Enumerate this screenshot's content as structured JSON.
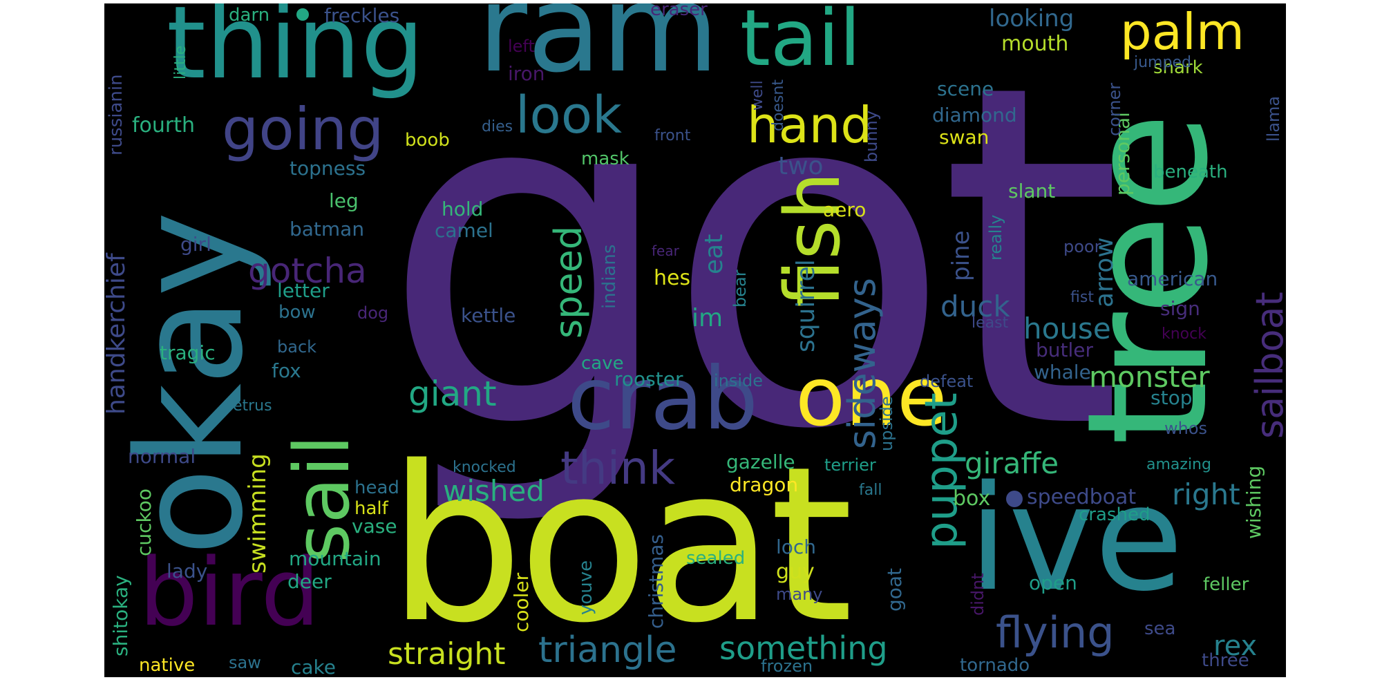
{
  "words": [
    {
      "id": "got",
      "text": "got",
      "color": "#482878"
    },
    {
      "id": "boat",
      "text": "boat",
      "color": "#c8e020"
    },
    {
      "id": "tree",
      "text": "tree",
      "color": "#35b779"
    },
    {
      "id": "okay",
      "text": "okay",
      "color": "#2a788e"
    },
    {
      "id": "ram",
      "text": "ram",
      "color": "#2a788e"
    },
    {
      "id": "thing",
      "text": "thing",
      "color": "#21918c"
    },
    {
      "id": "ive",
      "text": "ive",
      "color": "#26828e"
    },
    {
      "id": "crab",
      "text": "crab",
      "color": "#3e4a89"
    },
    {
      "id": "bird",
      "text": "bird",
      "color": "#440154"
    },
    {
      "id": "sail",
      "text": "sail",
      "color": "#5ec962"
    },
    {
      "id": "one",
      "text": "one",
      "color": "#fde725"
    },
    {
      "id": "fish",
      "text": "fish",
      "color": "#b5de2b"
    },
    {
      "id": "tail",
      "text": "tail",
      "color": "#22a884"
    },
    {
      "id": "palm",
      "text": "palm",
      "color": "#fde725"
    },
    {
      "id": "going",
      "text": "going",
      "color": "#414487"
    },
    {
      "id": "look",
      "text": "look",
      "color": "#2a788e"
    },
    {
      "id": "hand",
      "text": "hand",
      "color": "#dde318"
    },
    {
      "id": "think",
      "text": "think",
      "color": "#443a83"
    },
    {
      "id": "puppet",
      "text": "puppet",
      "color": "#1f9e89"
    },
    {
      "id": "flying",
      "text": "flying",
      "color": "#3b528b"
    },
    {
      "id": "sailboat",
      "text": "sailboat",
      "color": "#472d7b"
    },
    {
      "id": "triangle",
      "text": "triangle",
      "color": "#2c728e"
    },
    {
      "id": "sideways",
      "text": "sideways",
      "color": "#33638d"
    },
    {
      "id": "speed",
      "text": "speed",
      "color": "#35b779"
    },
    {
      "id": "something",
      "text": "something",
      "color": "#1f9e89"
    },
    {
      "id": "giant",
      "text": "giant",
      "color": "#22a884"
    },
    {
      "id": "gotcha",
      "text": "gotcha",
      "color": "#482677"
    },
    {
      "id": "monster",
      "text": "monster",
      "color": "#5ec962"
    },
    {
      "id": "giraffe",
      "text": "giraffe",
      "color": "#35b779"
    },
    {
      "id": "rex",
      "text": "rex",
      "color": "#26828e"
    },
    {
      "id": "right",
      "text": "right",
      "color": "#2a788e"
    },
    {
      "id": "straight",
      "text": "straight",
      "color": "#c8e020"
    },
    {
      "id": "wished",
      "text": "wished",
      "color": "#29af7f"
    },
    {
      "id": "house",
      "text": "house",
      "color": "#2a788e"
    },
    {
      "id": "duck",
      "text": "duck",
      "color": "#33638d"
    },
    {
      "id": "handkerchief",
      "text": "handkerchief",
      "color": "#3e4a89"
    },
    {
      "id": "squirrel",
      "text": "squirrel",
      "color": "#2c728e"
    },
    {
      "id": "arrow",
      "text": "arrow",
      "color": "#2c728e"
    },
    {
      "id": "swimming",
      "text": "swimming",
      "color": "#c8e020"
    },
    {
      "id": "two",
      "text": "two",
      "color": "#3b528b"
    },
    {
      "id": "pine",
      "text": "pine",
      "color": "#3b528b"
    },
    {
      "id": "eat",
      "text": "eat",
      "color": "#26828e"
    },
    {
      "id": "im",
      "text": "im",
      "color": "#22a884"
    },
    {
      "id": "hes",
      "text": "hes",
      "color": "#dde318"
    },
    {
      "id": "looking",
      "text": "looking",
      "color": "#31688e"
    },
    {
      "id": "mouth",
      "text": "mouth",
      "color": "#b5de2b"
    },
    {
      "id": "shark",
      "text": "shark",
      "color": "#a0da39"
    },
    {
      "id": "scene",
      "text": "scene",
      "color": "#2c728e"
    },
    {
      "id": "diamond",
      "text": "diamond",
      "color": "#31688e"
    },
    {
      "id": "swan",
      "text": "swan",
      "color": "#dde318"
    },
    {
      "id": "fourth",
      "text": "fourth",
      "color": "#2ab07f"
    },
    {
      "id": "boob",
      "text": "boob",
      "color": "#d0e11c"
    },
    {
      "id": "dies",
      "text": "dies",
      "color": "#355f8d"
    },
    {
      "id": "front",
      "text": "front",
      "color": "#3b528b"
    },
    {
      "id": "mask",
      "text": "mask",
      "color": "#52c569"
    },
    {
      "id": "topness",
      "text": "topness",
      "color": "#2c728e"
    },
    {
      "id": "leg",
      "text": "leg",
      "color": "#4ac16d"
    },
    {
      "id": "batman",
      "text": "batman",
      "color": "#31688e"
    },
    {
      "id": "hold",
      "text": "hold",
      "color": "#35b779"
    },
    {
      "id": "camel",
      "text": "camel",
      "color": "#2c728e"
    },
    {
      "id": "aero",
      "text": "aero",
      "color": "#d8e219"
    },
    {
      "id": "slant",
      "text": "slant",
      "color": "#5ec962"
    },
    {
      "id": "beneath",
      "text": "beneath",
      "color": "#2ab07f"
    },
    {
      "id": "personal",
      "text": "personal",
      "color": "#5ec962"
    },
    {
      "id": "llama",
      "text": "llama",
      "color": "#3b528b"
    },
    {
      "id": "american",
      "text": "american",
      "color": "#38598c"
    },
    {
      "id": "sign",
      "text": "sign",
      "color": "#472d7b"
    },
    {
      "id": "butler",
      "text": "butler",
      "color": "#472d7b"
    },
    {
      "id": "knock",
      "text": "knock",
      "color": "#440154"
    },
    {
      "id": "whale",
      "text": "whale",
      "color": "#33638d"
    },
    {
      "id": "stop",
      "text": "stop",
      "color": "#26828e"
    },
    {
      "id": "whos",
      "text": "whos",
      "color": "#3b528b"
    },
    {
      "id": "amazing",
      "text": "amazing",
      "color": "#21918c"
    },
    {
      "id": "wishing",
      "text": "wishing",
      "color": "#5ec962"
    },
    {
      "id": "speedboat",
      "text": "speedboat",
      "color": "#3e4a89"
    },
    {
      "id": "box",
      "text": "box",
      "color": "#5ec962"
    },
    {
      "id": "crashed",
      "text": "crashed",
      "color": "#1f9e89"
    },
    {
      "id": "feller",
      "text": "feller",
      "color": "#5ec962"
    },
    {
      "id": "sea",
      "text": "sea",
      "color": "#3e4a89"
    },
    {
      "id": "three",
      "text": "three",
      "color": "#3e4a89"
    },
    {
      "id": "tornado",
      "text": "tornado",
      "color": "#31688e"
    },
    {
      "id": "open",
      "text": "open",
      "color": "#1f9e89"
    },
    {
      "id": "didnt",
      "text": "didnt",
      "color": "#481769"
    },
    {
      "id": "goat",
      "text": "goat",
      "color": "#31688e"
    },
    {
      "id": "guy",
      "text": "guy",
      "color": "#d0e11c"
    },
    {
      "id": "loch",
      "text": "loch",
      "color": "#31688e"
    },
    {
      "id": "many",
      "text": "many",
      "color": "#3e4a89"
    },
    {
      "id": "frozen",
      "text": "frozen",
      "color": "#2c728e"
    },
    {
      "id": "sealed",
      "text": "sealed",
      "color": "#2ab07f"
    },
    {
      "id": "youve",
      "text": "youve",
      "color": "#26828e"
    },
    {
      "id": "christmas",
      "text": "christmas",
      "color": "#355f8d"
    },
    {
      "id": "cooler",
      "text": "cooler",
      "color": "#d8e219"
    },
    {
      "id": "dragon",
      "text": "dragon",
      "color": "#fde725"
    },
    {
      "id": "gazelle",
      "text": "gazelle",
      "color": "#35b779"
    },
    {
      "id": "terrier",
      "text": "terrier",
      "color": "#1f9e89"
    },
    {
      "id": "fall",
      "text": "fall",
      "color": "#2a788e"
    },
    {
      "id": "knocked",
      "text": "knocked",
      "color": "#2c728e"
    },
    {
      "id": "upside",
      "text": "upside",
      "color": "#2c728e"
    },
    {
      "id": "defeat",
      "text": "defeat",
      "color": "#3b528b"
    },
    {
      "id": "inside",
      "text": "inside",
      "color": "#2c728e"
    },
    {
      "id": "rooster",
      "text": "rooster",
      "color": "#21918c"
    },
    {
      "id": "cave",
      "text": "cave",
      "color": "#22a884"
    },
    {
      "id": "kettle",
      "text": "kettle",
      "color": "#3b528b"
    },
    {
      "id": "indians",
      "text": "indians",
      "color": "#2c728e"
    },
    {
      "id": "bear",
      "text": "bear",
      "color": "#26828e"
    },
    {
      "id": "fear",
      "text": "fear",
      "color": "#482677"
    },
    {
      "id": "really",
      "text": "really",
      "color": "#26828e"
    },
    {
      "id": "poor",
      "text": "poor",
      "color": "#3e4a89"
    },
    {
      "id": "fist",
      "text": "fist",
      "color": "#3b528b"
    },
    {
      "id": "least",
      "text": "least",
      "color": "#3e4a89"
    },
    {
      "id": "letter",
      "text": "letter",
      "color": "#1f9e89"
    },
    {
      "id": "bow",
      "text": "bow",
      "color": "#2c728e"
    },
    {
      "id": "dog",
      "text": "dog",
      "color": "#482677"
    },
    {
      "id": "back",
      "text": "back",
      "color": "#31688e"
    },
    {
      "id": "fox",
      "text": "fox",
      "color": "#2a788e"
    },
    {
      "id": "tragic",
      "text": "tragic",
      "color": "#2ab07f"
    },
    {
      "id": "petrus",
      "text": "petrus",
      "color": "#2a788e"
    },
    {
      "id": "normal",
      "text": "normal",
      "color": "#3e4a89"
    },
    {
      "id": "cuckoo",
      "text": "cuckoo",
      "color": "#5ec962"
    },
    {
      "id": "head",
      "text": "head",
      "color": "#2c728e"
    },
    {
      "id": "half",
      "text": "half",
      "color": "#d8e219"
    },
    {
      "id": "vase",
      "text": "vase",
      "color": "#2ab07f"
    },
    {
      "id": "lady",
      "text": "lady",
      "color": "#3b528b"
    },
    {
      "id": "mountain",
      "text": "mountain",
      "color": "#22a884"
    },
    {
      "id": "deer",
      "text": "deer",
      "color": "#22a884"
    },
    {
      "id": "shitokay",
      "text": "shitokay",
      "color": "#2ab07f"
    },
    {
      "id": "native",
      "text": "native",
      "color": "#fde725"
    },
    {
      "id": "saw",
      "text": "saw",
      "color": "#2c728e"
    },
    {
      "id": "cake",
      "text": "cake",
      "color": "#26828e"
    },
    {
      "id": "girl",
      "text": "girl",
      "color": "#3e4a89"
    },
    {
      "id": "russianin",
      "text": "russianin",
      "color": "#3e4a89"
    },
    {
      "id": "little",
      "text": "little",
      "color": "#2ab07f"
    },
    {
      "id": "darn",
      "text": "darn",
      "color": "#2ab07f"
    },
    {
      "id": "freckles",
      "text": "freckles",
      "color": "#3b528b"
    },
    {
      "id": "eraser",
      "text": "eraser",
      "color": "#482677"
    },
    {
      "id": "left",
      "text": "left",
      "color": "#440154"
    },
    {
      "id": "iron",
      "text": "iron",
      "color": "#481769"
    },
    {
      "id": "well",
      "text": "well",
      "color": "#3e4a89"
    },
    {
      "id": "doesnt",
      "text": "doesnt",
      "color": "#38598c"
    },
    {
      "id": "bunny",
      "text": "bunny",
      "color": "#3e4a89"
    },
    {
      "id": "corner",
      "text": "corner",
      "color": "#3b528b"
    },
    {
      "id": "jumped",
      "text": "jumped",
      "color": "#38598c"
    }
  ]
}
